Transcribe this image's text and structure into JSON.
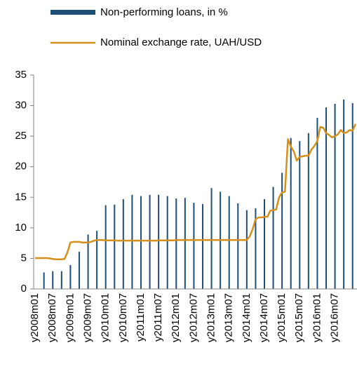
{
  "chart_data": {
    "type": "bar",
    "categories": [
      "y2008m01",
      null,
      null,
      null,
      null,
      null,
      "y2008m07",
      null,
      null,
      null,
      null,
      null,
      "y2009m01",
      null,
      null,
      null,
      null,
      null,
      "y2009m07",
      null,
      null,
      null,
      null,
      null,
      "y2010m01",
      null,
      null,
      null,
      null,
      null,
      "y2010m07",
      null,
      null,
      null,
      null,
      null,
      "y2011m01",
      null,
      null,
      null,
      null,
      null,
      "y2011m07",
      null,
      null,
      null,
      null,
      null,
      "y2012m01",
      null,
      null,
      null,
      null,
      null,
      "y2012m07",
      null,
      null,
      null,
      null,
      null,
      "y2013m01",
      null,
      null,
      null,
      null,
      null,
      "y2013m07",
      null,
      null,
      null,
      null,
      null,
      "y2014m01",
      null,
      null,
      null,
      null,
      null,
      "y2014m07",
      null,
      null,
      null,
      null,
      null,
      "y2015m01",
      null,
      null,
      null,
      null,
      null,
      "y2015m07",
      null,
      null,
      null,
      null,
      null,
      "y2016m01",
      null,
      null,
      null,
      null,
      null,
      "y2016m07",
      null,
      null,
      null,
      null,
      null,
      null,
      null
    ],
    "series": [
      {
        "name": "Non-performing loans, in %",
        "type": "bar",
        "color": "#1f4e79",
        "values": [
          null,
          null,
          null,
          2.7,
          null,
          null,
          2.9,
          null,
          null,
          2.9,
          null,
          null,
          3.9,
          null,
          null,
          6.1,
          null,
          null,
          8.9,
          null,
          null,
          9.5,
          null,
          null,
          13.7,
          null,
          null,
          13.8,
          null,
          null,
          14.7,
          null,
          null,
          15.4,
          null,
          null,
          15.2,
          null,
          null,
          15.4,
          null,
          null,
          15.4,
          null,
          null,
          15.2,
          null,
          null,
          14.8,
          null,
          null,
          14.9,
          null,
          null,
          14.1,
          null,
          null,
          13.9,
          null,
          null,
          16.5,
          null,
          null,
          15.9,
          null,
          null,
          15.2,
          null,
          null,
          14.0,
          null,
          null,
          12.9,
          null,
          null,
          13.2,
          null,
          null,
          14.7,
          null,
          null,
          16.7,
          null,
          null,
          19.0,
          null,
          null,
          24.7,
          null,
          null,
          24.2,
          null,
          null,
          25.5,
          null,
          null,
          28.0,
          null,
          null,
          29.7,
          null,
          null,
          30.3,
          null,
          null,
          31.0,
          null,
          null,
          30.4,
          null
        ]
      },
      {
        "name": "Nominal exchange rate, UAH/USD",
        "type": "line",
        "color": "#d4901a",
        "values": [
          5.05,
          5.05,
          5.05,
          5.05,
          5.05,
          5.0,
          4.9,
          4.85,
          4.85,
          4.85,
          4.9,
          6.0,
          7.6,
          7.7,
          7.7,
          7.7,
          7.6,
          7.6,
          7.6,
          7.7,
          7.9,
          8.0,
          8.0,
          8.0,
          7.95,
          7.95,
          7.95,
          7.95,
          7.9,
          7.9,
          7.9,
          7.9,
          7.9,
          7.9,
          7.9,
          7.9,
          7.9,
          7.9,
          7.9,
          7.9,
          7.9,
          7.9,
          7.95,
          7.95,
          7.95,
          7.95,
          7.95,
          7.95,
          8.0,
          8.0,
          8.0,
          8.0,
          8.0,
          8.0,
          8.0,
          8.0,
          8.0,
          8.0,
          8.0,
          8.0,
          8.0,
          8.0,
          8.0,
          8.0,
          8.0,
          8.0,
          8.0,
          8.0,
          8.0,
          8.0,
          8.0,
          8.0,
          8.0,
          8.6,
          9.8,
          11.4,
          11.7,
          11.7,
          11.8,
          11.8,
          12.8,
          12.9,
          13.0,
          15.0,
          15.8,
          15.9,
          24.5,
          23.3,
          22.5,
          21.0,
          21.6,
          21.7,
          21.8,
          21.8,
          22.8,
          23.4,
          24.2,
          26.5,
          26.4,
          25.5,
          25.2,
          24.8,
          25.0,
          25.3,
          26.0,
          25.5,
          25.6,
          26.0,
          25.9,
          27.0
        ]
      }
    ],
    "ylim": [
      0,
      35
    ],
    "yticks": [
      0,
      5,
      10,
      15,
      20,
      25,
      30,
      35
    ],
    "grid": false,
    "legend": "top"
  }
}
